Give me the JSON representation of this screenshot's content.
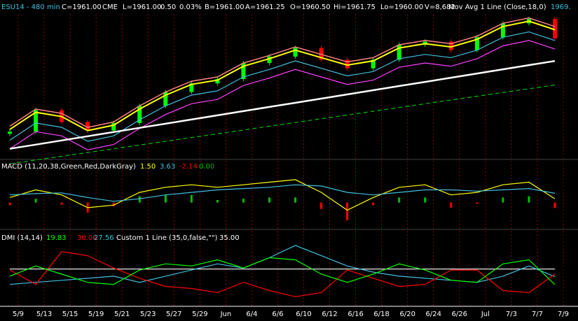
{
  "header": {
    "symbol": "ESU14 - 480 min",
    "close": "C=1961.00",
    "exchange": "CME",
    "last": "L=1961.00",
    "change": "0.50",
    "pct": "0.03%",
    "bid": "B=1961.00",
    "ask": "A=1961.25",
    "open": "O=1960.50",
    "high": "Hi=1961.75",
    "low": "Lo=1960.00",
    "volume": "V=8,682",
    "study": "Mov Avg 1 Line (Close,18,0)",
    "study_value": "1969."
  },
  "macd_header": {
    "label": "MACD (11,20,38,Green,Red,DarkGray)",
    "v1": "1.50",
    "v2": "3.63",
    "v3": "-2.14",
    "v4": "0.00"
  },
  "dmi_header": {
    "label": "DMI (14,14)",
    "v1": "19.83",
    "v2": "30.06",
    "v3": "27.56",
    "custom": "Custom 1 Line (35,0,false,\"\")",
    "v4": "35.00"
  },
  "x_axis": {
    "ticks": [
      "5/9",
      "5/13",
      "5/15",
      "5/19",
      "5/21",
      "5/23",
      "5/27",
      "5/29",
      "Jun",
      "6/4",
      "6/6",
      "6/10",
      "6/12",
      "6/16",
      "6/18",
      "6/20",
      "6/24",
      "6/26",
      "Jul",
      "7/3",
      "7/7",
      "7/9"
    ]
  },
  "colors": {
    "background": "#000000",
    "up_candle": "#00ff00",
    "down_candle": "#ff0000",
    "ma_fast": "#ffff00",
    "ma_mid": "#ff8080",
    "ma_cyan": "#40c0e0",
    "ma_magenta": "#ff40ff",
    "ma_white": "#ffffff",
    "ma_green_dash": "#00c000",
    "macd_line": "#ffff00",
    "macd_signal": "#40c0e0",
    "hist_pos": "#00c000",
    "hist_neg": "#ff0000",
    "dmi_plus": "#00ff00",
    "dmi_minus": "#ff0000",
    "adx": "#40c0e0",
    "level_line": "#ffffff"
  },
  "chart_data": [
    {
      "type": "line",
      "panel": "price",
      "description_of_series": "close",
      "x": [
        "5/9",
        "5/13",
        "5/15",
        "5/19",
        "5/21",
        "5/23",
        "5/27",
        "5/29",
        "Jun",
        "6/4",
        "6/6",
        "6/10",
        "6/12",
        "6/16",
        "6/18",
        "6/20",
        "6/24",
        "6/26",
        "Jul",
        "7/3",
        "7/7",
        "7/9"
      ],
      "series": [
        {
          "name": "Mov Avg 1 Line (Close,18,0)",
          "values": [
            1876,
            1892,
            1888,
            1875,
            1880,
            1895,
            1908,
            1918,
            1922,
            1935,
            1942,
            1950,
            1943,
            1936,
            1940,
            1952,
            1956,
            1953,
            1960,
            1972,
            1977,
            1969
          ]
        }
      ],
      "close_values": [
        1874,
        1894,
        1883,
        1875,
        1882,
        1898,
        1911,
        1919,
        1923,
        1938,
        1944,
        1952,
        1941,
        1933,
        1941,
        1955,
        1958,
        1950,
        1962,
        1975,
        1979,
        1961
      ]
    },
    {
      "type": "line",
      "panel": "macd",
      "x": [
        "5/9",
        "5/13",
        "5/15",
        "5/19",
        "5/21",
        "5/23",
        "5/27",
        "5/29",
        "Jun",
        "6/4",
        "6/6",
        "6/10",
        "6/12",
        "6/16",
        "6/18",
        "6/20",
        "6/24",
        "6/26",
        "Jul",
        "7/3",
        "7/7",
        "7/9"
      ],
      "series": [
        {
          "name": "MACD",
          "values": [
            2,
            5,
            3,
            -2,
            -1,
            4,
            6,
            7,
            6,
            7,
            8,
            9,
            4,
            -3,
            2,
            6,
            7,
            3,
            4,
            7,
            8,
            1.5
          ]
        },
        {
          "name": "Signal",
          "values": [
            3,
            3.5,
            3.8,
            2,
            0.5,
            1.5,
            3,
            4,
            5,
            5.5,
            6,
            7,
            6.5,
            4,
            3,
            4,
            5,
            5,
            4.5,
            5,
            5.5,
            3.63
          ]
        },
        {
          "name": "Histogram",
          "values": [
            -1,
            1.5,
            -0.8,
            -4,
            -1.5,
            2.5,
            3,
            3,
            1,
            1.5,
            2,
            2,
            -2.5,
            -7,
            -1,
            2,
            2,
            -2,
            -0.5,
            2,
            2.5,
            -2.14
          ]
        }
      ]
    },
    {
      "type": "line",
      "panel": "dmi",
      "x": [
        "5/9",
        "5/13",
        "5/15",
        "5/19",
        "5/21",
        "5/23",
        "5/27",
        "5/29",
        "Jun",
        "6/4",
        "6/6",
        "6/10",
        "6/12",
        "6/16",
        "6/18",
        "6/20",
        "6/24",
        "6/26",
        "Jul",
        "7/3",
        "7/7",
        "7/9"
      ],
      "series": [
        {
          "name": "DI+",
          "values": [
            28,
            38,
            30,
            22,
            20,
            34,
            40,
            38,
            44,
            36,
            46,
            44,
            30,
            22,
            30,
            40,
            34,
            24,
            22,
            40,
            44,
            19.83
          ]
        },
        {
          "name": "DI-",
          "values": [
            34,
            20,
            52,
            48,
            36,
            26,
            18,
            16,
            12,
            22,
            14,
            8,
            12,
            34,
            26,
            18,
            20,
            34,
            34,
            14,
            12,
            30.06
          ]
        },
        {
          "name": "ADX",
          "values": [
            20,
            22,
            24,
            26,
            28,
            22,
            28,
            34,
            40,
            36,
            46,
            58,
            48,
            38,
            32,
            28,
            26,
            24,
            22,
            28,
            38,
            27.56
          ]
        },
        {
          "name": "Level",
          "values": [
            35,
            35,
            35,
            35,
            35,
            35,
            35,
            35,
            35,
            35,
            35,
            35,
            35,
            35,
            35,
            35,
            35,
            35,
            35,
            35,
            35,
            35
          ]
        }
      ]
    }
  ]
}
